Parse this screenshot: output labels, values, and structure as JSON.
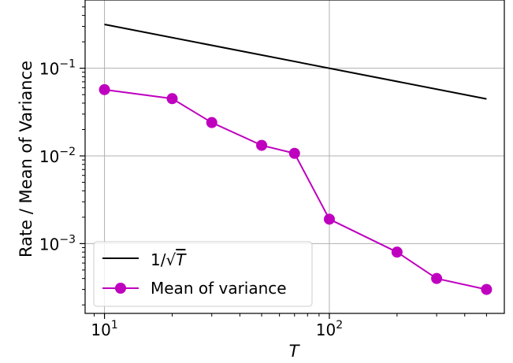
{
  "chart_data": {
    "type": "line",
    "x_scale": "log",
    "y_scale": "log",
    "xlabel": "T",
    "ylabel": "Rate / Mean of Variance",
    "xlim": [
      8.2,
      600
    ],
    "ylim": [
      0.00016,
      0.6
    ],
    "grid": true,
    "legend_position": "lower-left",
    "x_ticks": [
      {
        "value": 10,
        "base": "10",
        "exp": "1"
      },
      {
        "value": 100,
        "base": "10",
        "exp": "2"
      }
    ],
    "y_ticks": [
      {
        "value": 0.001,
        "base": "10",
        "exp": "−3"
      },
      {
        "value": 0.01,
        "base": "10",
        "exp": "−2"
      },
      {
        "value": 0.1,
        "base": "10",
        "exp": "−1"
      }
    ],
    "series": [
      {
        "name": "1/√T",
        "color": "#000000",
        "marker": "none",
        "x": [
          10,
          500
        ],
        "y": [
          0.316,
          0.0447
        ]
      },
      {
        "name": "Mean of variance",
        "color": "#bf00bf",
        "marker": "circle",
        "x": [
          10,
          20,
          30,
          50,
          70,
          100,
          200,
          300,
          500
        ],
        "y": [
          0.057,
          0.045,
          0.024,
          0.0132,
          0.0107,
          0.0019,
          0.0008,
          0.0004,
          0.0003
        ]
      }
    ],
    "legend": {
      "line_label_prefix": "1/",
      "line_label_var": "T",
      "markers_label": "Mean of variance"
    }
  }
}
